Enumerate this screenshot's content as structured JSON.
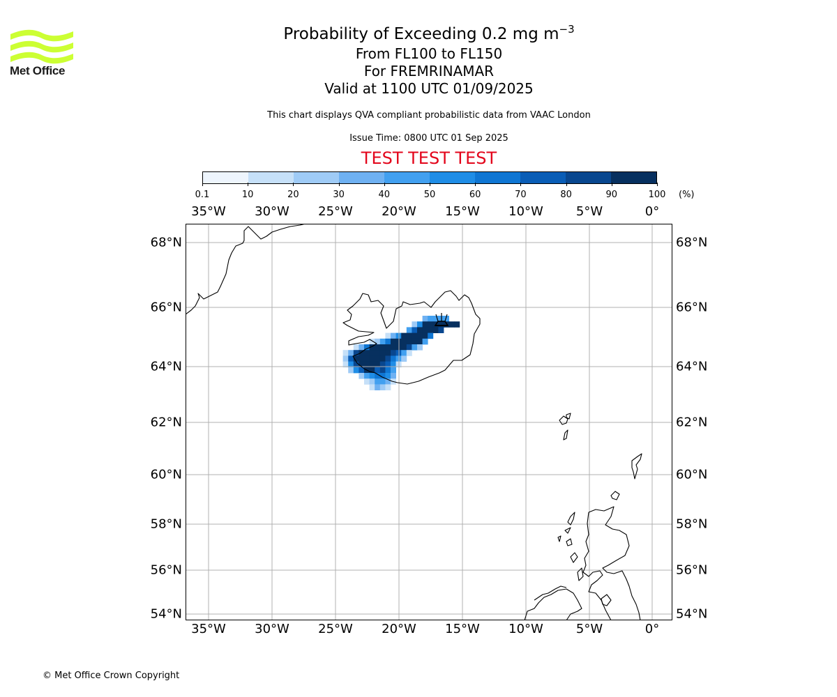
{
  "logo": {
    "text": "Met Office",
    "brand_color": "#ccff33"
  },
  "title": {
    "line1_main": "Probability of Exceeding 0.2 mg m",
    "line1_exp": "−3",
    "line2": "From FL100 to FL150",
    "line3": "For FREMRINAMAR",
    "line4": "Valid at 1100 UTC 01/09/2025"
  },
  "subtitle": "This chart displays QVA compliant probabilistic data from VAAC London",
  "issue_time": "Issue Time: 0800 UTC 01 Sep 2025",
  "test_banner": "TEST TEST TEST",
  "colorbar": {
    "ticks": [
      "0.1",
      "10",
      "20",
      "30",
      "40",
      "50",
      "60",
      "70",
      "80",
      "90",
      "100"
    ],
    "unit": "(%)",
    "colors": [
      "#eef5fd",
      "#c6e0f8",
      "#9fcbf6",
      "#6fb1f2",
      "#42a0f0",
      "#1f8de6",
      "#0f76d3",
      "#0a5db6",
      "#09478f",
      "#07305f"
    ]
  },
  "map": {
    "lon_labels": [
      "35°W",
      "30°W",
      "25°W",
      "20°W",
      "15°W",
      "10°W",
      "5°W",
      "0°"
    ],
    "lat_labels": [
      "68°N",
      "66°N",
      "64°N",
      "62°N",
      "60°N",
      "58°N",
      "56°N",
      "54°N"
    ],
    "volcano_icon": "volcano-icon",
    "volcano": {
      "name": "FREMRINAMAR",
      "lon": -16.65,
      "lat": 65.43
    },
    "probability_field": [
      {
        "row": 0,
        "cells": [
          [
            16,
            30
          ],
          [
            17,
            40
          ],
          [
            18,
            40
          ],
          [
            19,
            40
          ],
          [
            20,
            45
          ]
        ]
      },
      {
        "row": 1,
        "cells": [
          [
            14,
            20
          ],
          [
            15,
            50
          ],
          [
            16,
            95
          ],
          [
            17,
            95
          ],
          [
            18,
            95
          ],
          [
            19,
            95
          ],
          [
            20,
            95
          ],
          [
            21,
            95
          ],
          [
            22,
            95
          ]
        ]
      },
      {
        "row": 2,
        "cells": [
          [
            13,
            40
          ],
          [
            14,
            75
          ],
          [
            15,
            95
          ],
          [
            16,
            95
          ],
          [
            17,
            95
          ],
          [
            18,
            95
          ],
          [
            19,
            85
          ]
        ]
      },
      {
        "row": 3,
        "cells": [
          [
            9,
            10
          ],
          [
            10,
            30
          ],
          [
            11,
            50
          ],
          [
            12,
            95
          ],
          [
            13,
            95
          ],
          [
            14,
            95
          ],
          [
            15,
            95
          ],
          [
            16,
            95
          ],
          [
            17,
            60
          ]
        ]
      },
      {
        "row": 4,
        "cells": [
          [
            6,
            10
          ],
          [
            7,
            20
          ],
          [
            8,
            40
          ],
          [
            9,
            65
          ],
          [
            10,
            95
          ],
          [
            11,
            95
          ],
          [
            12,
            95
          ],
          [
            13,
            95
          ],
          [
            14,
            95
          ],
          [
            15,
            90
          ],
          [
            16,
            40
          ]
        ]
      },
      {
        "row": 5,
        "cells": [
          [
            3,
            15
          ],
          [
            4,
            30
          ],
          [
            5,
            60
          ],
          [
            6,
            95
          ],
          [
            7,
            95
          ],
          [
            8,
            95
          ],
          [
            9,
            95
          ],
          [
            10,
            95
          ],
          [
            11,
            95
          ],
          [
            12,
            95
          ],
          [
            13,
            80
          ],
          [
            14,
            45
          ],
          [
            15,
            20
          ]
        ]
      },
      {
        "row": 6,
        "cells": [
          [
            1,
            10
          ],
          [
            2,
            30
          ],
          [
            3,
            80
          ],
          [
            4,
            95
          ],
          [
            5,
            95
          ],
          [
            6,
            95
          ],
          [
            7,
            95
          ],
          [
            8,
            95
          ],
          [
            9,
            95
          ],
          [
            10,
            85
          ],
          [
            11,
            70
          ],
          [
            12,
            40
          ],
          [
            13,
            15
          ]
        ]
      },
      {
        "row": 7,
        "cells": [
          [
            1,
            20
          ],
          [
            2,
            75
          ],
          [
            3,
            95
          ],
          [
            4,
            95
          ],
          [
            5,
            95
          ],
          [
            6,
            95
          ],
          [
            7,
            95
          ],
          [
            8,
            90
          ],
          [
            9,
            85
          ],
          [
            10,
            65
          ],
          [
            11,
            40
          ],
          [
            12,
            20
          ]
        ]
      },
      {
        "row": 8,
        "cells": [
          [
            1,
            10
          ],
          [
            2,
            55
          ],
          [
            3,
            80
          ],
          [
            4,
            95
          ],
          [
            5,
            95
          ],
          [
            6,
            95
          ],
          [
            7,
            95
          ],
          [
            8,
            85
          ],
          [
            9,
            70
          ],
          [
            10,
            50
          ],
          [
            11,
            15
          ]
        ]
      },
      {
        "row": 9,
        "cells": [
          [
            2,
            25
          ],
          [
            3,
            50
          ],
          [
            4,
            75
          ],
          [
            5,
            90
          ],
          [
            6,
            90
          ],
          [
            7,
            70
          ],
          [
            8,
            80
          ],
          [
            9,
            60
          ],
          [
            10,
            40
          ]
        ]
      },
      {
        "row": 10,
        "cells": [
          [
            4,
            20
          ],
          [
            5,
            40
          ],
          [
            6,
            55
          ],
          [
            7,
            65
          ],
          [
            8,
            60
          ],
          [
            9,
            50
          ],
          [
            10,
            30
          ]
        ]
      },
      {
        "row": 11,
        "cells": [
          [
            5,
            10
          ],
          [
            6,
            20
          ],
          [
            7,
            40
          ],
          [
            8,
            45
          ],
          [
            9,
            35
          ],
          [
            10,
            10
          ]
        ]
      },
      {
        "row": 12,
        "cells": [
          [
            6,
            15
          ],
          [
            7,
            30
          ],
          [
            8,
            25
          ],
          [
            9,
            10
          ]
        ]
      }
    ]
  },
  "copyright": "© Met Office Crown Copyright"
}
